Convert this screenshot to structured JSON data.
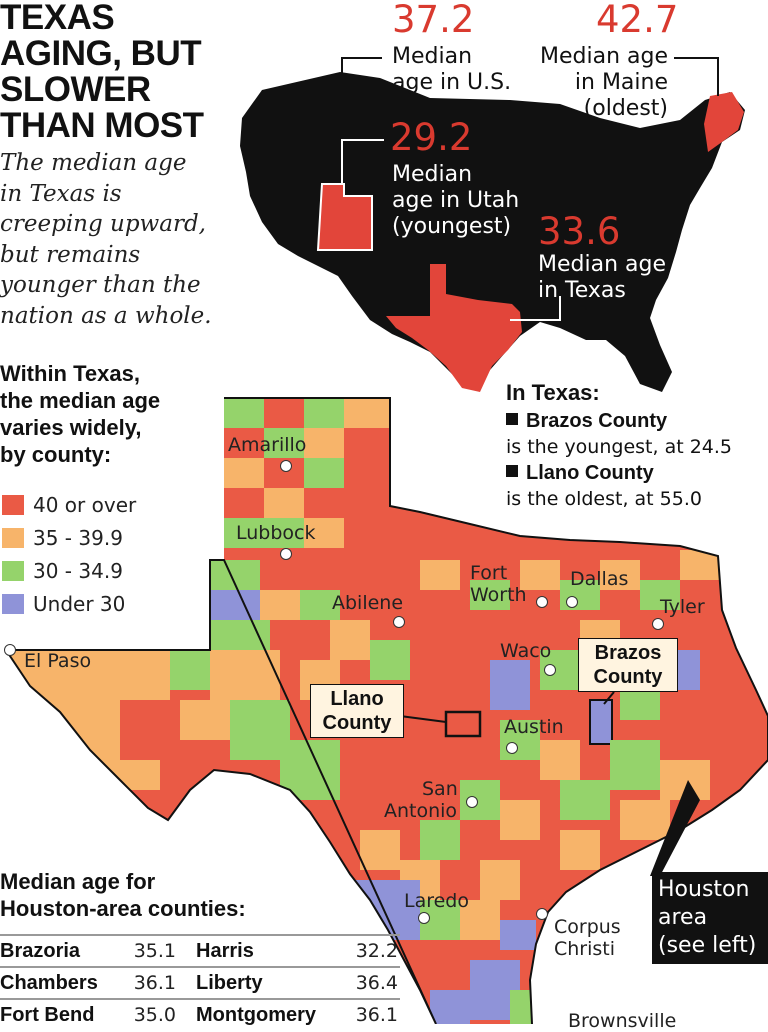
{
  "headline": {
    "lines": [
      "TEXAS",
      "AGING, BUT",
      "SLOWER",
      "THAN MOST"
    ]
  },
  "deck": {
    "lines": [
      "The median age",
      "in Texas is",
      "creeping upward,",
      "but remains",
      "younger than the",
      "nation as a whole."
    ]
  },
  "us_stats": {
    "us": {
      "value": "37.2",
      "caption": [
        "Median",
        "age in U.S."
      ]
    },
    "maine": {
      "value": "42.7",
      "caption": [
        "Median age",
        "in Maine",
        "(oldest)"
      ]
    },
    "utah": {
      "value": "29.2",
      "caption": [
        "Median",
        "age in Utah",
        "(youngest)"
      ]
    },
    "texas": {
      "value": "33.6",
      "caption": [
        "Median age",
        "in Texas"
      ]
    }
  },
  "county_section": {
    "title_lines": [
      "Within Texas,",
      "the median age",
      "varies widely,",
      "by county:"
    ]
  },
  "legend": [
    {
      "label": "40 or over",
      "color": "#ea5a45"
    },
    {
      "label": "35 - 39.9",
      "color": "#f7b46a"
    },
    {
      "label": "30 - 34.9",
      "color": "#95d36b"
    },
    {
      "label": "Under 30",
      "color": "#8f93d8"
    }
  ],
  "colors": {
    "us_map": "#111111",
    "highlight_state": "#e2453a",
    "accent_text": "#d93a2f"
  },
  "texas_facts": {
    "title": "In Texas:",
    "youngest_name": "Brazos County",
    "youngest_text": "is the youngest, at 24.5",
    "oldest_name": "Llano County",
    "oldest_text": "is the oldest, at 55.0"
  },
  "cities": {
    "amarillo": "Amarillo",
    "lubbock": "Lubbock",
    "abilene": "Abilene",
    "fort_worth": [
      "Fort",
      "Worth"
    ],
    "dallas": "Dallas",
    "tyler": "Tyler",
    "el_paso": "El Paso",
    "waco": "Waco",
    "austin": "Austin",
    "san_antonio": [
      "San",
      "Antonio"
    ],
    "laredo": "Laredo",
    "corpus_christi": [
      "Corpus",
      "Christi"
    ],
    "brownsville": "Brownsville"
  },
  "callouts": {
    "llano": [
      "Llano",
      "County"
    ],
    "brazos": [
      "Brazos",
      "County"
    ],
    "houston": [
      "Houston",
      "area",
      "(see left)"
    ]
  },
  "houston_table": {
    "title_lines": [
      "Median age for",
      "Houston-area counties:"
    ],
    "rows": [
      {
        "left_name": "Brazoria",
        "left_value": "35.1",
        "right_name": "Harris",
        "right_value": "32.2"
      },
      {
        "left_name": "Chambers",
        "left_value": "36.1",
        "right_name": "Liberty",
        "right_value": "36.4"
      },
      {
        "left_name": "Fort Bend",
        "left_value": "35.0",
        "right_name": "Montgomery",
        "right_value": "36.1"
      }
    ]
  }
}
